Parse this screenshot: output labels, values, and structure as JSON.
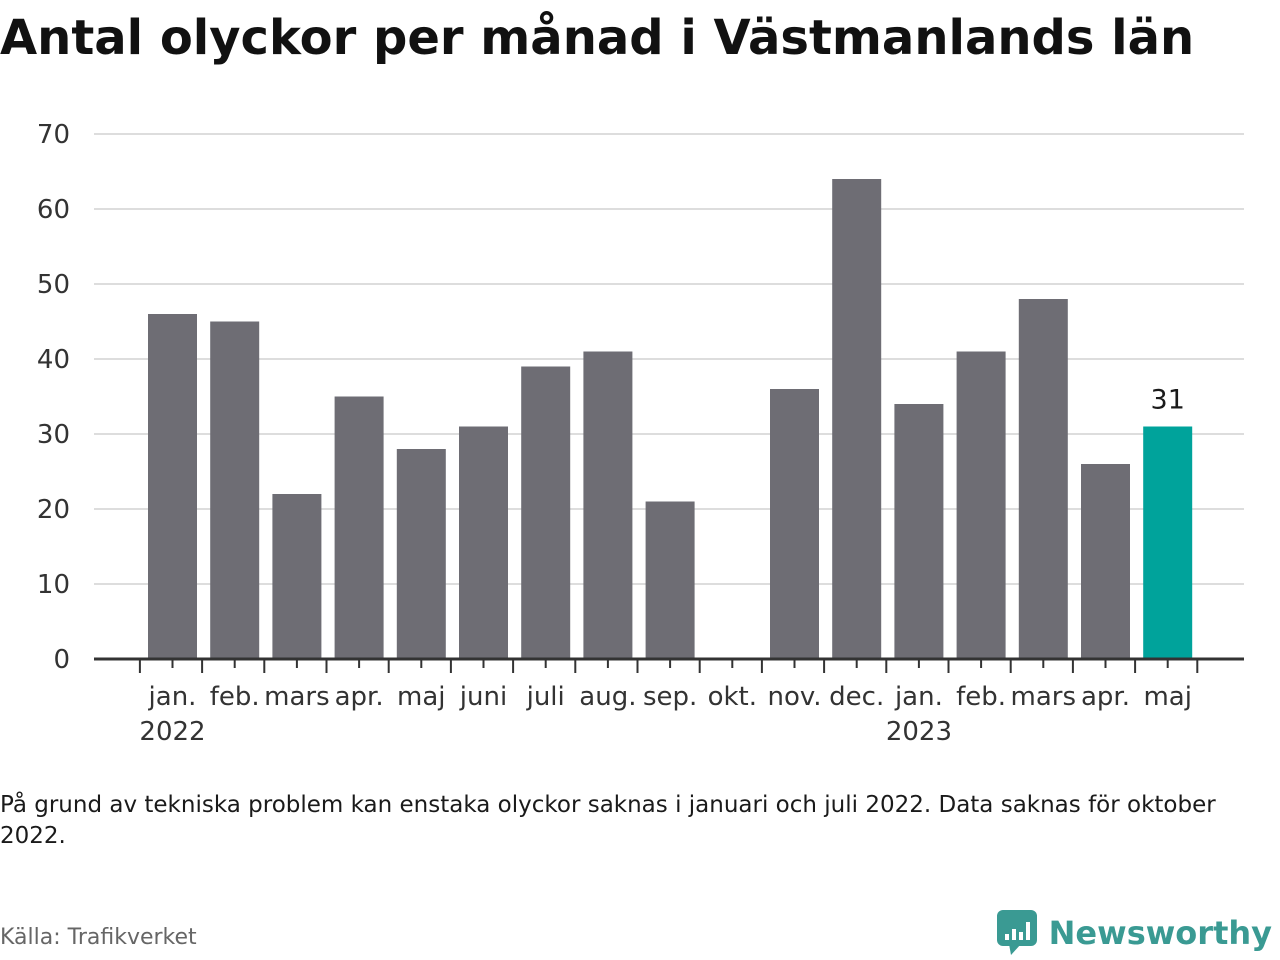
{
  "title": "Antal olyckor per månad i Västmanlands län",
  "note": "På grund av tekniska problem kan enstaka olyckor saknas i januari och juli 2022. Data saknas för oktober 2022.",
  "source": "Källa: Trafikverket",
  "brand": {
    "name": "Newsworthy",
    "icon": "newsworthy-chart-bubble-icon",
    "color": "#3a9a93"
  },
  "chart_data": {
    "type": "bar",
    "categories": [
      "jan.",
      "feb.",
      "mars",
      "apr.",
      "maj",
      "juni",
      "juli",
      "aug.",
      "sep.",
      "okt.",
      "nov.",
      "dec.",
      "jan.",
      "feb.",
      "mars",
      "apr.",
      "maj"
    ],
    "years": [
      {
        "label": "2022",
        "category_index": 0
      },
      {
        "label": "2023",
        "category_index": 12
      }
    ],
    "values": [
      46,
      45,
      22,
      35,
      28,
      31,
      39,
      41,
      21,
      null,
      36,
      64,
      34,
      41,
      48,
      26,
      31
    ],
    "highlight_index": 16,
    "highlight_label": "31",
    "colors": {
      "bar": "#6e6d74",
      "highlight": "#00a39b",
      "grid": "#dddddd",
      "axis": "#333333"
    },
    "yticks": [
      0,
      10,
      20,
      30,
      40,
      50,
      60,
      70
    ],
    "ylim": [
      0,
      70
    ],
    "grid": true,
    "xlabel": "",
    "ylabel": ""
  }
}
